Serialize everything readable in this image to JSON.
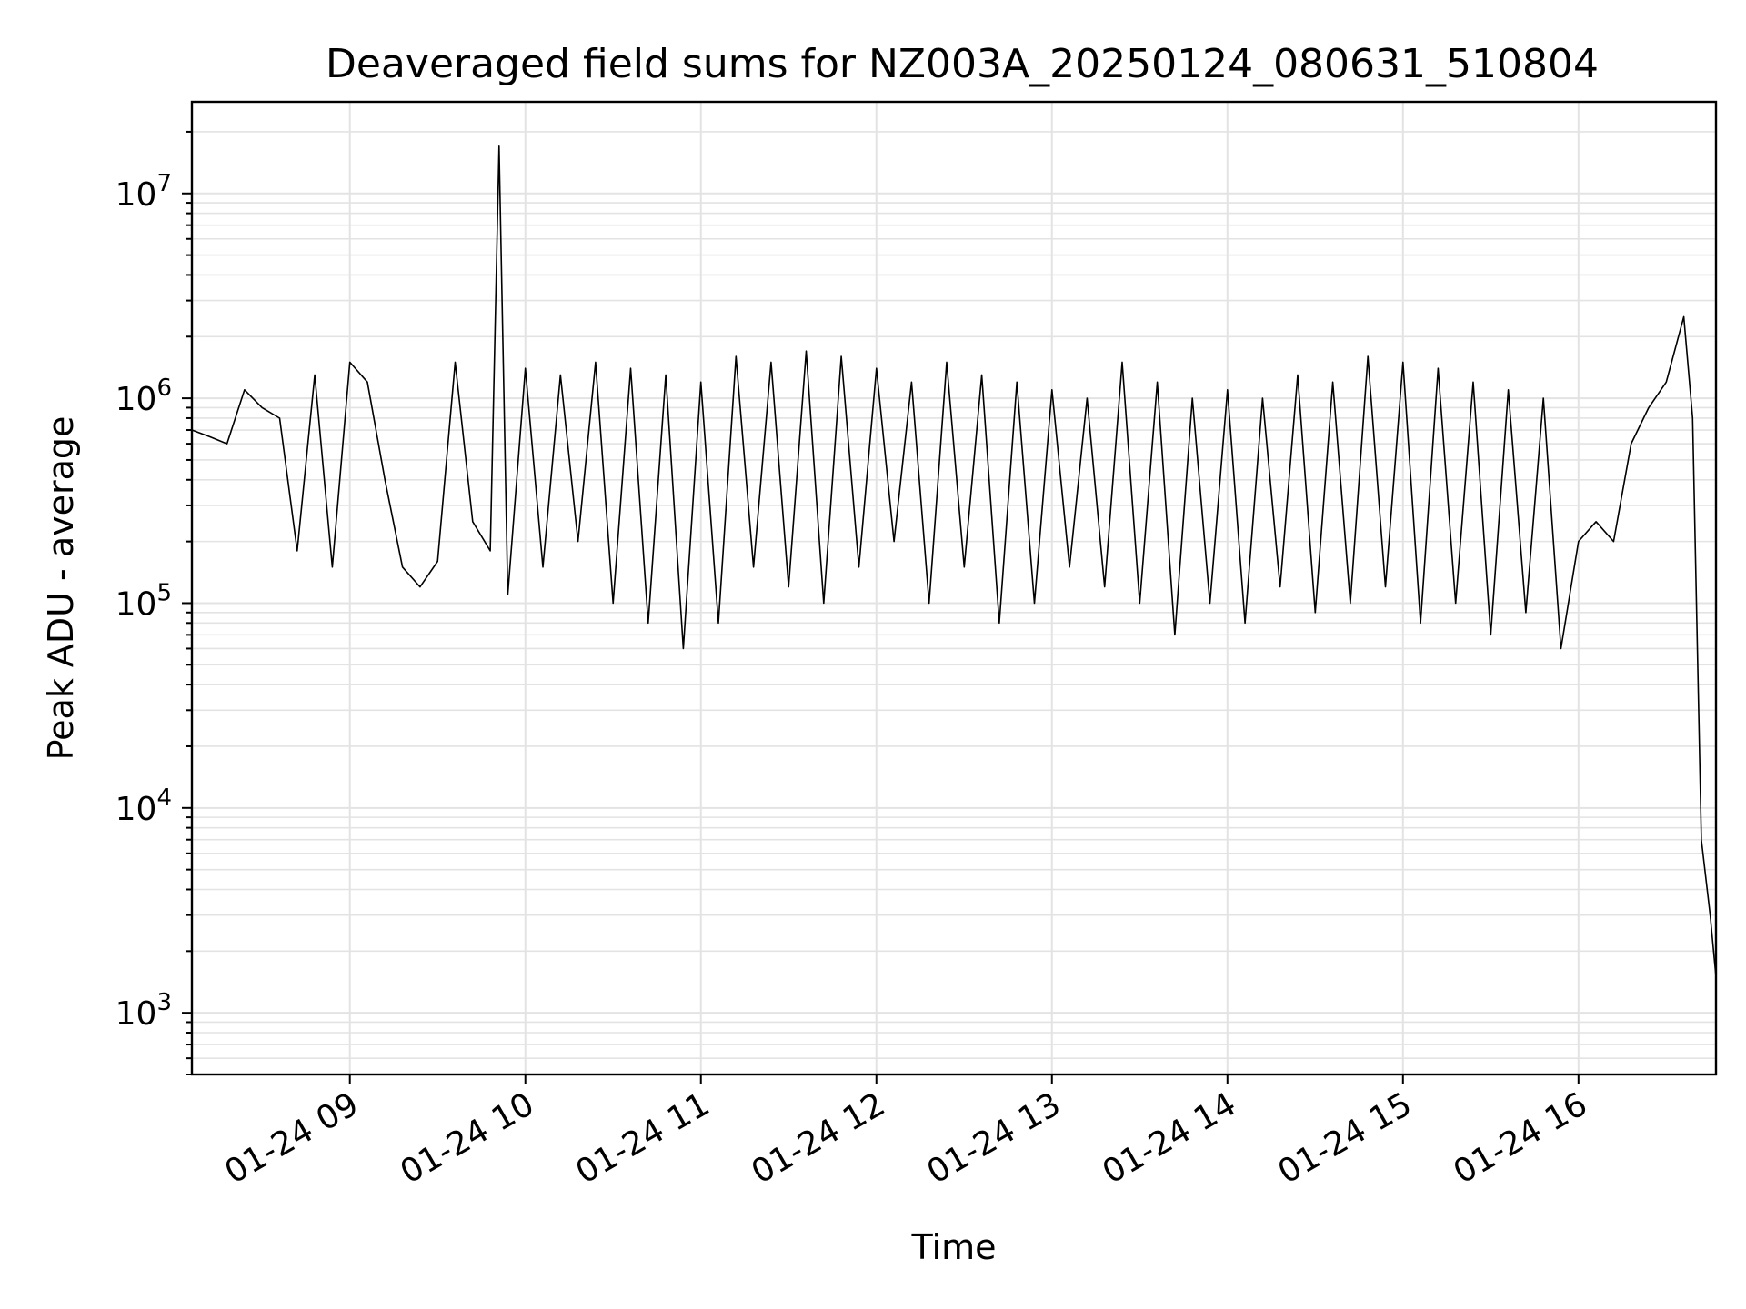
{
  "chart_data": {
    "type": "line",
    "title": "Deaveraged field sums for NZ003A_20250124_080631_510804",
    "xlabel": "Time",
    "ylabel": "Peak ADU - average",
    "yscale": "log",
    "ylim": [
      500,
      28000000
    ],
    "xlim": [
      "2025-01-24 08:06",
      "2025-01-24 16:47"
    ],
    "grid": "major and minor",
    "legend": "none",
    "line_color": "#000000",
    "xticks": [
      {
        "value": "2025-01-24 09:00",
        "label": "01-24 09"
      },
      {
        "value": "2025-01-24 10:00",
        "label": "01-24 10"
      },
      {
        "value": "2025-01-24 11:00",
        "label": "01-24 11"
      },
      {
        "value": "2025-01-24 12:00",
        "label": "01-24 12"
      },
      {
        "value": "2025-01-24 13:00",
        "label": "01-24 13"
      },
      {
        "value": "2025-01-24 14:00",
        "label": "01-24 14"
      },
      {
        "value": "2025-01-24 15:00",
        "label": "01-24 15"
      },
      {
        "value": "2025-01-24 16:00",
        "label": "01-24 16"
      }
    ],
    "yticks": [
      {
        "value": 1000,
        "base": "10",
        "exp": "3"
      },
      {
        "value": 10000,
        "base": "10",
        "exp": "4"
      },
      {
        "value": 100000,
        "base": "10",
        "exp": "5"
      },
      {
        "value": 1000000,
        "base": "10",
        "exp": "6"
      },
      {
        "value": 10000000,
        "base": "10",
        "exp": "7"
      }
    ],
    "series": [
      {
        "x": [
          "2025-01-24 08:06",
          "2025-01-24 08:12",
          "2025-01-24 08:18",
          "2025-01-24 08:24",
          "2025-01-24 08:30",
          "2025-01-24 08:36",
          "2025-01-24 08:42",
          "2025-01-24 08:48",
          "2025-01-24 08:54",
          "2025-01-24 09:00",
          "2025-01-24 09:06",
          "2025-01-24 09:12",
          "2025-01-24 09:18",
          "2025-01-24 09:24",
          "2025-01-24 09:30",
          "2025-01-24 09:36",
          "2025-01-24 09:42",
          "2025-01-24 09:48",
          "2025-01-24 09:51",
          "2025-01-24 09:54",
          "2025-01-24 10:00",
          "2025-01-24 10:06",
          "2025-01-24 10:12",
          "2025-01-24 10:18",
          "2025-01-24 10:24",
          "2025-01-24 10:30",
          "2025-01-24 10:36",
          "2025-01-24 10:42",
          "2025-01-24 10:48",
          "2025-01-24 10:54",
          "2025-01-24 11:00",
          "2025-01-24 11:06",
          "2025-01-24 11:12",
          "2025-01-24 11:18",
          "2025-01-24 11:24",
          "2025-01-24 11:30",
          "2025-01-24 11:36",
          "2025-01-24 11:42",
          "2025-01-24 11:48",
          "2025-01-24 11:54",
          "2025-01-24 12:00",
          "2025-01-24 12:06",
          "2025-01-24 12:12",
          "2025-01-24 12:18",
          "2025-01-24 12:24",
          "2025-01-24 12:30",
          "2025-01-24 12:36",
          "2025-01-24 12:42",
          "2025-01-24 12:48",
          "2025-01-24 12:54",
          "2025-01-24 13:00",
          "2025-01-24 13:06",
          "2025-01-24 13:12",
          "2025-01-24 13:18",
          "2025-01-24 13:24",
          "2025-01-24 13:30",
          "2025-01-24 13:36",
          "2025-01-24 13:42",
          "2025-01-24 13:48",
          "2025-01-24 13:54",
          "2025-01-24 14:00",
          "2025-01-24 14:06",
          "2025-01-24 14:12",
          "2025-01-24 14:18",
          "2025-01-24 14:24",
          "2025-01-24 14:30",
          "2025-01-24 14:36",
          "2025-01-24 14:42",
          "2025-01-24 14:48",
          "2025-01-24 14:54",
          "2025-01-24 15:00",
          "2025-01-24 15:06",
          "2025-01-24 15:12",
          "2025-01-24 15:18",
          "2025-01-24 15:24",
          "2025-01-24 15:30",
          "2025-01-24 15:36",
          "2025-01-24 15:42",
          "2025-01-24 15:48",
          "2025-01-24 15:54",
          "2025-01-24 16:00",
          "2025-01-24 16:06",
          "2025-01-24 16:12",
          "2025-01-24 16:18",
          "2025-01-24 16:24",
          "2025-01-24 16:30",
          "2025-01-24 16:36",
          "2025-01-24 16:39",
          "2025-01-24 16:42",
          "2025-01-24 16:45",
          "2025-01-24 16:47"
        ],
        "y": [
          700000,
          650000,
          600000,
          1100000,
          900000,
          800000,
          180000,
          1300000,
          150000,
          1500000,
          1200000,
          400000,
          150000,
          120000,
          160000,
          1500000,
          250000,
          180000,
          17000000,
          110000,
          1400000,
          150000,
          1300000,
          200000,
          1500000,
          100000,
          1400000,
          80000,
          1300000,
          60000,
          1200000,
          80000,
          1600000,
          150000,
          1500000,
          120000,
          1700000,
          100000,
          1600000,
          150000,
          1400000,
          200000,
          1200000,
          100000,
          1500000,
          150000,
          1300000,
          80000,
          1200000,
          100000,
          1100000,
          150000,
          1000000,
          120000,
          1500000,
          100000,
          1200000,
          70000,
          1000000,
          100000,
          1100000,
          80000,
          1000000,
          120000,
          1300000,
          90000,
          1200000,
          100000,
          1600000,
          120000,
          1500000,
          80000,
          1400000,
          100000,
          1200000,
          70000,
          1100000,
          90000,
          1000000,
          60000,
          200000,
          250000,
          200000,
          600000,
          900000,
          1200000,
          2500000,
          800000,
          7000,
          3000,
          1500
        ]
      }
    ]
  }
}
